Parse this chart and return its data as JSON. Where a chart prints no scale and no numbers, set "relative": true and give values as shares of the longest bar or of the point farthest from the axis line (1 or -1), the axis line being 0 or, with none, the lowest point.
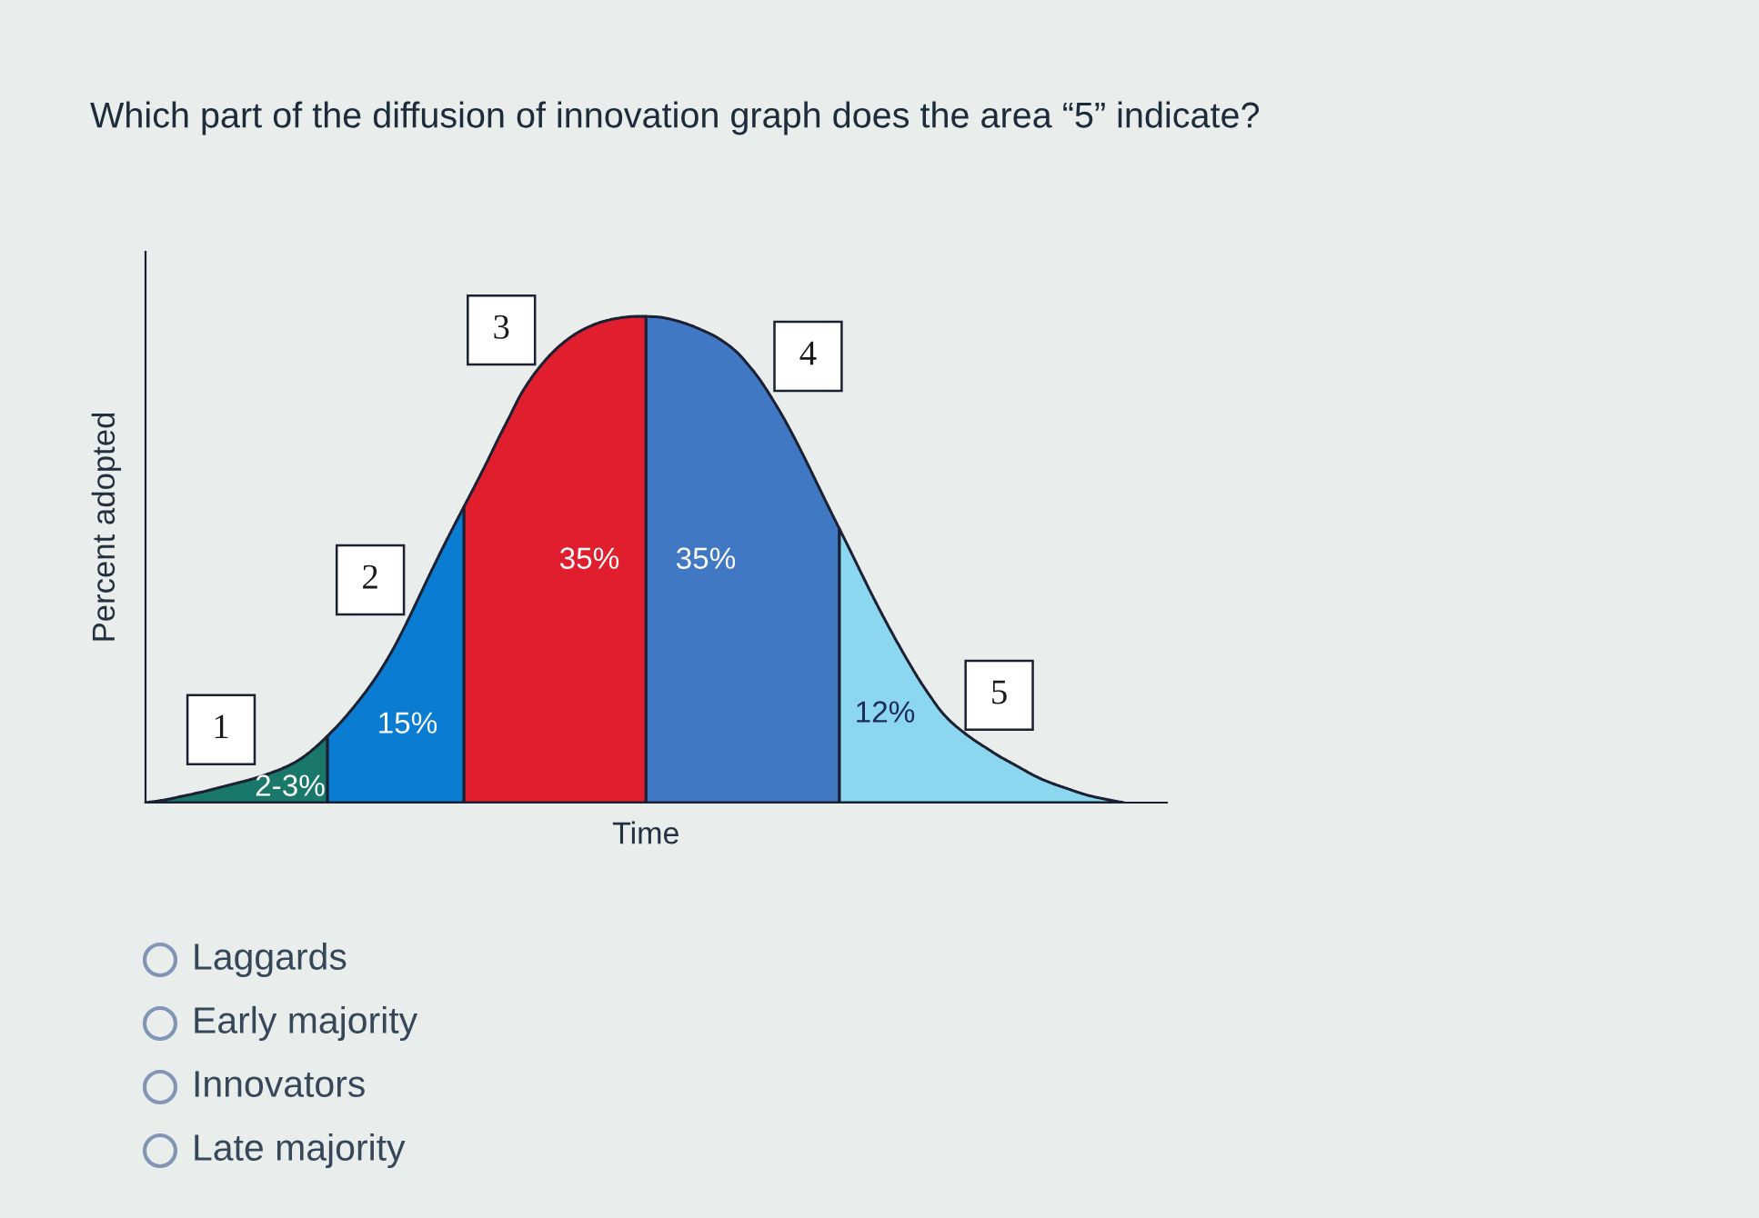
{
  "chart_data": {
    "type": "area",
    "title": "Which part of the diffusion of innovation graph does the area “5” indicate?",
    "xlabel": "Time",
    "ylabel": "Percent adopted",
    "relative": true,
    "categories": [
      null,
      null,
      null,
      null,
      null,
      null,
      null,
      null,
      null,
      null,
      null,
      null,
      null,
      null,
      null,
      null,
      null,
      null,
      null,
      null,
      null,
      null,
      null,
      null,
      null,
      null,
      null,
      null,
      null,
      null,
      null,
      null,
      null,
      null,
      null,
      null,
      null,
      null,
      null,
      null,
      null,
      null,
      null,
      null,
      null,
      null,
      null,
      null,
      null,
      null,
      null,
      null,
      null,
      null,
      null,
      null,
      null,
      null,
      null,
      null,
      null,
      null,
      null,
      null,
      null,
      null,
      null,
      null,
      null,
      null,
      null,
      null,
      null,
      null,
      null,
      null,
      null,
      null,
      null,
      null,
      null,
      null,
      null,
      null,
      null,
      null,
      null
    ],
    "series": [
      {
        "name": "1",
        "color": "#197869",
        "values": [
          0.0,
          0.003,
          0.007,
          0.012,
          0.017,
          0.022,
          0.028,
          0.034,
          0.04,
          0.046,
          0.053,
          0.061,
          0.07,
          0.081,
          0.096,
          0.115,
          0.137,
          null,
          null,
          null,
          null,
          null,
          null,
          null,
          null,
          null,
          null,
          null,
          null,
          null,
          null,
          null,
          null,
          null,
          null,
          null,
          null,
          null,
          null,
          null,
          null,
          null,
          null,
          null,
          null,
          null,
          null,
          null,
          null,
          null,
          null,
          null,
          null,
          null,
          null,
          null,
          null,
          null,
          null,
          null,
          null,
          null,
          null,
          null,
          null,
          null,
          null,
          null,
          null,
          null,
          null,
          null,
          null,
          null,
          null,
          null,
          null,
          null,
          null,
          null,
          null,
          null,
          null,
          null,
          null,
          null,
          null
        ]
      },
      {
        "name": "2",
        "color": "#0a7dd2",
        "values": [
          null,
          null,
          null,
          null,
          null,
          null,
          null,
          null,
          null,
          null,
          null,
          null,
          null,
          null,
          null,
          null,
          0.137,
          0.161,
          0.188,
          0.217,
          0.249,
          0.285,
          0.326,
          0.372,
          0.421,
          0.47,
          0.518,
          0.564,
          0.609,
          null,
          null,
          null,
          null,
          null,
          null,
          null,
          null,
          null,
          null,
          null,
          null,
          null,
          null,
          null,
          null,
          null,
          null,
          null,
          null,
          null,
          null,
          null,
          null,
          null,
          null,
          null,
          null,
          null,
          null,
          null,
          null,
          null,
          null,
          null,
          null,
          null,
          null,
          null,
          null,
          null,
          null,
          null,
          null,
          null,
          null,
          null,
          null,
          null,
          null,
          null,
          null,
          null,
          null,
          null,
          null,
          null,
          null
        ]
      },
      {
        "name": "3",
        "color": "#e11e2d",
        "values": [
          null,
          null,
          null,
          null,
          null,
          null,
          null,
          null,
          null,
          null,
          null,
          null,
          null,
          null,
          null,
          null,
          null,
          null,
          null,
          null,
          null,
          null,
          null,
          null,
          null,
          null,
          null,
          null,
          0.609,
          0.654,
          0.7,
          0.748,
          0.794,
          0.84,
          0.876,
          0.906,
          0.931,
          0.951,
          0.967,
          0.979,
          0.988,
          0.994,
          0.998,
          1.0,
          1.0,
          null,
          null,
          null,
          null,
          null,
          null,
          null,
          null,
          null,
          null,
          null,
          null,
          null,
          null,
          null,
          null,
          null,
          null,
          null,
          null,
          null,
          null,
          null,
          null,
          null,
          null,
          null,
          null,
          null,
          null,
          null,
          null,
          null,
          null,
          null,
          null,
          null,
          null,
          null,
          null,
          null,
          null
        ]
      },
      {
        "name": "4",
        "color": "#4178c3",
        "values": [
          null,
          null,
          null,
          null,
          null,
          null,
          null,
          null,
          null,
          null,
          null,
          null,
          null,
          null,
          null,
          null,
          null,
          null,
          null,
          null,
          null,
          null,
          null,
          null,
          null,
          null,
          null,
          null,
          null,
          null,
          null,
          null,
          null,
          null,
          null,
          null,
          null,
          null,
          null,
          null,
          null,
          null,
          null,
          null,
          1.0,
          0.999,
          0.995,
          0.989,
          0.981,
          0.971,
          0.96,
          0.945,
          0.926,
          0.9,
          0.87,
          0.834,
          0.795,
          0.752,
          0.706,
          0.658,
          0.61,
          0.563,
          null,
          null,
          null,
          null,
          null,
          null,
          null,
          null,
          null,
          null,
          null,
          null,
          null,
          null,
          null,
          null,
          null,
          null,
          null,
          null,
          null,
          null,
          null,
          null,
          null
        ]
      },
      {
        "name": "5",
        "color": "#8cd7f0",
        "values": [
          null,
          null,
          null,
          null,
          null,
          null,
          null,
          null,
          null,
          null,
          null,
          null,
          null,
          null,
          null,
          null,
          null,
          null,
          null,
          null,
          null,
          null,
          null,
          null,
          null,
          null,
          null,
          null,
          null,
          null,
          null,
          null,
          null,
          null,
          null,
          null,
          null,
          null,
          null,
          null,
          null,
          null,
          null,
          null,
          null,
          null,
          null,
          null,
          null,
          null,
          null,
          null,
          null,
          null,
          null,
          null,
          null,
          null,
          null,
          null,
          null,
          0.563,
          0.516,
          0.468,
          0.421,
          0.376,
          0.333,
          0.292,
          0.253,
          0.218,
          0.186,
          0.162,
          0.143,
          0.126,
          0.111,
          0.096,
          0.083,
          0.07,
          0.057,
          0.046,
          0.037,
          0.029,
          0.021,
          0.014,
          0.009,
          0.004,
          0.0
        ]
      }
    ],
    "annotations": [
      "2-3%",
      "15%",
      "35%",
      "35%",
      "12%",
      "Laggards",
      "Early majority",
      "Innovators",
      "Late majority"
    ]
  }
}
